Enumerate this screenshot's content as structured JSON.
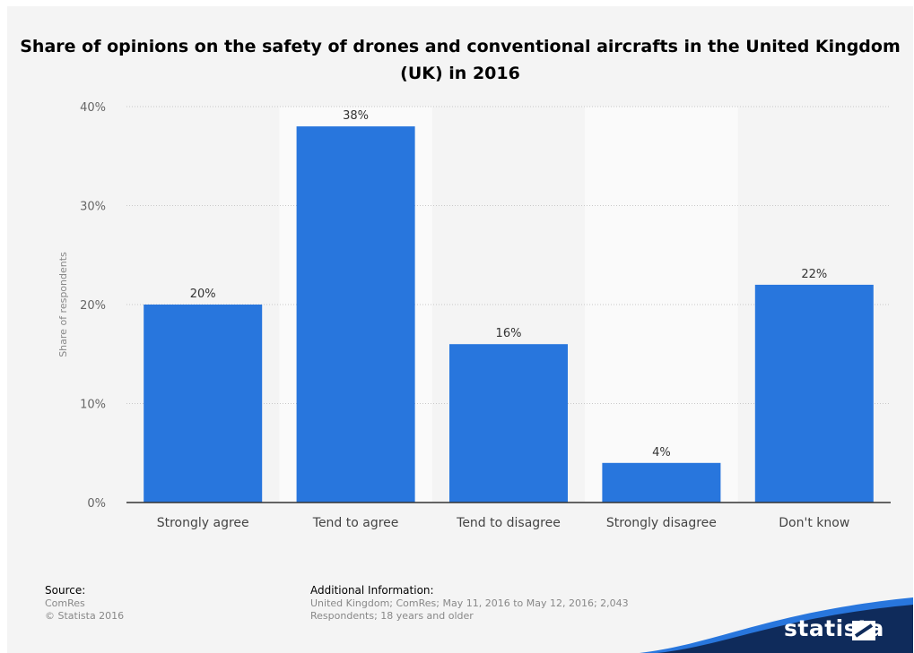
{
  "chart_data": {
    "type": "bar",
    "title": "Share of opinions on the safety of drones and conventional aircrafts in the United Kingdom (UK) in 2016",
    "categories": [
      "Strongly agree",
      "Tend to agree",
      "Tend to disagree",
      "Strongly disagree",
      "Don't know"
    ],
    "values": [
      20,
      38,
      16,
      4,
      22
    ],
    "value_labels": [
      "20%",
      "38%",
      "16%",
      "4%",
      "22%"
    ],
    "xlabel": "",
    "ylabel": "Share of respondents",
    "ylim": [
      0,
      40
    ],
    "yticks": [
      0,
      10,
      20,
      30,
      40
    ],
    "ytick_labels": [
      "0%",
      "10%",
      "20%",
      "30%",
      "40%"
    ],
    "grid": true,
    "bar_color": "#2876dd"
  },
  "footer": {
    "source_heading": "Source:",
    "source_lines": [
      "ComRes",
      "© Statista 2016"
    ],
    "info_heading": "Additional Information:",
    "info_lines": [
      "United Kingdom; ComRes; May 11, 2016 to May 12, 2016; 2,043",
      "Respondents; 18 years and older"
    ]
  },
  "brand": {
    "name": "statista",
    "colors": {
      "dark": "#0f2b5b",
      "accent": "#2876dd"
    }
  }
}
